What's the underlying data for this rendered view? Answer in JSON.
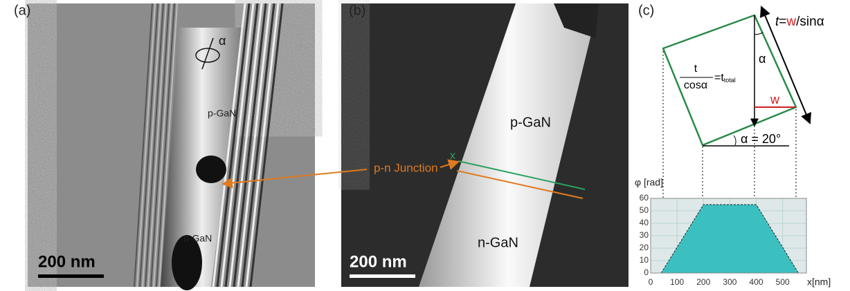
{
  "panels": {
    "a": {
      "label": "(a)",
      "scale_bar": "200 nm",
      "p_region": "p-GaN",
      "n_region": "n-GaN",
      "rotation": "α"
    },
    "b": {
      "label": "(b)",
      "scale_bar": "200 nm",
      "p_region": "p-GaN",
      "n_region": "n-GaN",
      "marker": "x"
    },
    "c": {
      "label": "(c)",
      "thick_t": "t",
      "thick_eq": "=",
      "thick_w": "w",
      "thick_rest": "/sinα",
      "ratio_num": "t",
      "ratio_den": "cosα",
      "ratio_eq": "=t",
      "ratio_sub": "total",
      "angle": "α",
      "width": "w",
      "tilt": "α = 20°"
    }
  },
  "annotation": "p-n Junction",
  "chart_data": {
    "type": "area",
    "ylabel": "φ [rad]",
    "xlabel": "x[nm]",
    "x": [
      40,
      200,
      400,
      560
    ],
    "values": [
      0,
      55,
      55,
      0
    ],
    "xlim": [
      0,
      590
    ],
    "ylim": [
      0,
      60
    ],
    "xticks": [
      0,
      100,
      200,
      300,
      400,
      500
    ],
    "yticks": [
      0,
      10,
      20,
      30,
      40,
      50,
      60
    ],
    "color": "#3cbfbf",
    "grid": true
  }
}
